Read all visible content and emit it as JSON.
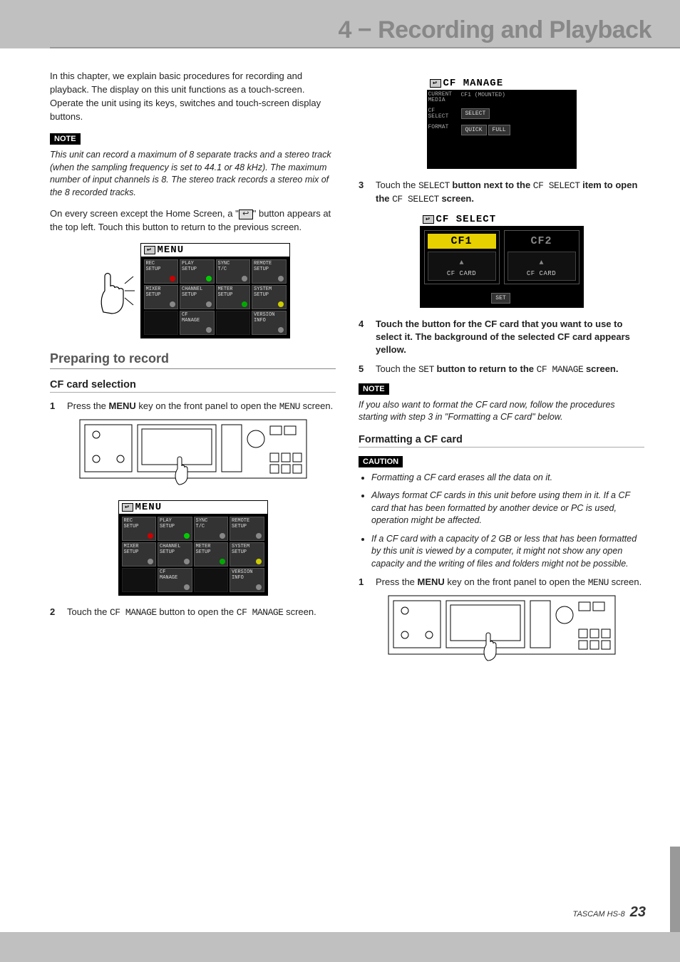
{
  "chapter_title": "4 − Recording and Playback",
  "footer_model": "TASCAM  HS-8",
  "page_number": "23",
  "left": {
    "intro": "In this chapter, we explain basic procedures for recording and playback. The display on this unit functions as a touch-screen. Operate the unit using its keys, switches and touch-screen display buttons.",
    "note_label": "NOTE",
    "note1": "This unit can record a maximum of 8 separate tracks and a stereo track (when the sampling frequency is set to 44.1 or 48 kHz). The maximum number of input channels is 8. The stereo track records a stereo mix of the 8 recorded tracks.",
    "back_para_a": "On every screen except the Home Screen, a \"",
    "back_para_b": "\" button appears at the top left. Touch this button to return to the previous screen.",
    "section_prepare": "Preparing to record",
    "sub_cf_select": "CF card selection",
    "step1_a": "Press the ",
    "step1_menu": "MENU",
    "step1_b": " key on the front panel to open the ",
    "step1_c": " screen.",
    "step2_a": "Touch the ",
    "step2_b": " button to open the ",
    "step2_c": " screen.",
    "cf_manage_mono": "CF MANAGE"
  },
  "right": {
    "step3_a": "Touch the ",
    "step3_select": "SELECT",
    "step3_b": " button next to the ",
    "step3_cfsel": "CF SELECT",
    "step3_c": " item to open the ",
    "step3_d": " screen.",
    "step4": "Touch the button for the CF card that you want to use to select it. The background of the selected CF card appears yellow.",
    "step5_a": "Touch the ",
    "step5_set": "SET",
    "step5_b": " button to return to the ",
    "step5_c": " screen.",
    "note_label": "NOTE",
    "note2": "If you also want to format the CF card now, follow the procedures starting with step 3 in \"Formatting a CF card\" below.",
    "sub_format": "Formatting a CF card",
    "caution_label": "CAUTION",
    "caution_items": [
      "Formatting a CF card erases all the data on it.",
      "Always format CF cards in this unit before using them in it. If a CF card that has been formatted by another device or PC is used, operation might be affected.",
      "If a CF card with a capacity of 2 GB or less that has been formatted by this unit is viewed by a computer, it might not show any open capacity and the writing of files and folders might not be possible."
    ],
    "step1f_a": "Press the ",
    "step1f_menu": "MENU",
    "step1f_b": " key on the front panel to open the ",
    "step1f_c": " screen."
  },
  "menu_screen": {
    "title": "MENU",
    "buttons": [
      {
        "label": "REC\nSETUP",
        "dot": "#c00"
      },
      {
        "label": "PLAY\nSETUP",
        "dot": "#0c0"
      },
      {
        "label": "SYNC\nT/C",
        "dot": "#888"
      },
      {
        "label": "REMOTE\nSETUP",
        "dot": "#888"
      },
      {
        "label": "MIXER\nSETUP",
        "dot": "#888"
      },
      {
        "label": "CHANNEL\nSETUP",
        "dot": "#888"
      },
      {
        "label": "METER\nSETUP",
        "dot": "#0a0"
      },
      {
        "label": "SYSTEM\nSETUP",
        "dot": "#cc0"
      },
      {
        "label": "",
        "dot": ""
      },
      {
        "label": "CF\nMANAGE",
        "dot": "#888"
      },
      {
        "label": "",
        "dot": ""
      },
      {
        "label": "VERSION\nINFO",
        "dot": "#888"
      }
    ]
  },
  "cf_manage_screen": {
    "title": "CF MANAGE",
    "rows": [
      {
        "label": "CURRENT\nMEDIA",
        "value": "CF1  (MOUNTED)"
      },
      {
        "label": "CF\nSELECT",
        "chips": [
          "SELECT"
        ]
      },
      {
        "label": "FORMAT",
        "chips": [
          "QUICK",
          "FULL"
        ]
      }
    ]
  },
  "cf_select_screen": {
    "title": "CF SELECT",
    "cards": [
      {
        "name": "CF1",
        "active": true,
        "slot": "CF CARD"
      },
      {
        "name": "CF2",
        "active": false,
        "slot": "CF CARD"
      }
    ],
    "set_label": "SET"
  },
  "colors": {
    "page_bg": "#c0c0c0",
    "text": "#222222",
    "heading": "#888888",
    "rule": "#888888",
    "note_bg": "#000000",
    "note_fg": "#ffffff",
    "cf1_highlight": "#e6d000"
  }
}
